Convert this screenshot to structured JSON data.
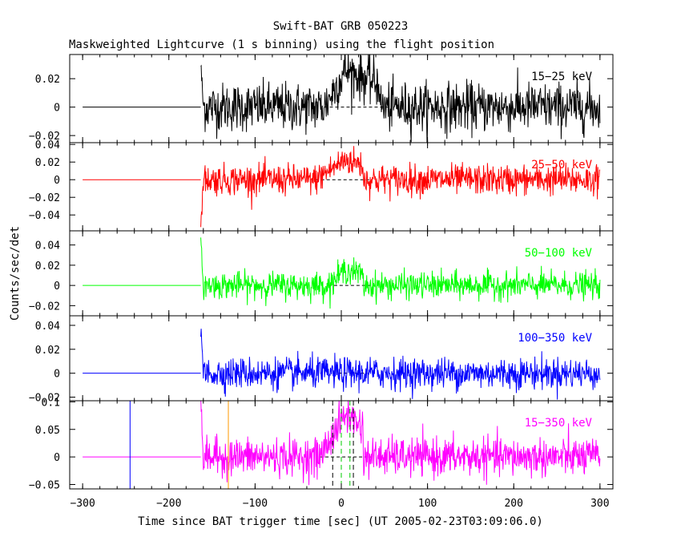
{
  "chart_data": {
    "type": "line",
    "title": "Swift-BAT GRB 050223",
    "subtitle": "Maskweighted Lightcurve (1 s binning) using the flight position",
    "xlabel": "Time since BAT trigger time [sec] (UT 2005-02-23T03:09:06.0)",
    "ylabel": "Counts/sec/det",
    "xlim": [
      -315,
      315
    ],
    "x_ticks": [
      -300,
      -200,
      -100,
      0,
      100,
      200,
      300
    ],
    "x_tick_labels": [
      "−300",
      "−200",
      "−100",
      "0",
      "100",
      "200",
      "300"
    ],
    "data_start": -163,
    "series_end": 300,
    "panels": [
      {
        "name": "15−25 keV",
        "color": "#000000",
        "ylim": [
          -0.025,
          0.037
        ],
        "yticks": [
          -0.02,
          0,
          0.02
        ],
        "ytick_labels": [
          "−0.02",
          "0",
          "0.02"
        ],
        "noise_sd": 0.0085,
        "initial_spike": 0.03,
        "peak": 0.026,
        "pulse_start": -20,
        "pulse_peak": 5,
        "pulse_end": 45
      },
      {
        "name": "25−50 keV",
        "color": "#ff0000",
        "ylim": [
          -0.058,
          0.042
        ],
        "yticks": [
          -0.04,
          -0.02,
          0,
          0.02,
          0.04
        ],
        "ytick_labels": [
          "−0.04",
          "−0.02",
          "0",
          "0.02",
          "0.04"
        ],
        "noise_sd": 0.0085,
        "initial_spike": -0.055,
        "peak": 0.023,
        "pulse_start": -30,
        "pulse_peak": 5,
        "pulse_end": 25
      },
      {
        "name": "50−100 keV",
        "color": "#00ff00",
        "ylim": [
          -0.03,
          0.054
        ],
        "yticks": [
          -0.02,
          0,
          0.02,
          0.04
        ],
        "ytick_labels": [
          "−0.02",
          "0",
          "0.02",
          "0.04"
        ],
        "noise_sd": 0.0065,
        "initial_spike": 0.045,
        "peak": 0.016,
        "pulse_start": -15,
        "pulse_peak": 5,
        "pulse_end": 25
      },
      {
        "name": "100−350 keV",
        "color": "#0000ff",
        "ylim": [
          -0.023,
          0.048
        ],
        "yticks": [
          -0.02,
          0,
          0.02,
          0.04
        ],
        "ytick_labels": [
          "−0.02",
          "0",
          "0.02",
          "0.04"
        ],
        "noise_sd": 0.0065,
        "initial_spike": 0.036,
        "peak": 0.0,
        "pulse_start": -10,
        "pulse_peak": 5,
        "pulse_end": 20
      },
      {
        "name": "15−350 keV",
        "color": "#ff00ff",
        "ylim": [
          -0.058,
          0.102
        ],
        "yticks": [
          -0.05,
          0,
          0.05,
          0.1
        ],
        "ytick_labels": [
          "−0.05",
          "0",
          "0.05",
          "0.1"
        ],
        "noise_sd": 0.017,
        "initial_spike": 0.095,
        "peak": 0.078,
        "pulse_start": -25,
        "pulse_peak": 5,
        "pulse_end": 25
      }
    ],
    "markers": [
      {
        "x": -245,
        "color": "#0000ff",
        "style": "solid"
      },
      {
        "x": -131,
        "color": "#ff9900",
        "style": "solid"
      },
      {
        "x": -10,
        "color": "#000000",
        "style": "dashed"
      },
      {
        "x": 0,
        "color": "#00cc00",
        "style": "dashed"
      },
      {
        "x": 10,
        "color": "#00cc00",
        "style": "dashed"
      },
      {
        "x": 14,
        "color": "#000000",
        "style": "dashed"
      }
    ]
  }
}
